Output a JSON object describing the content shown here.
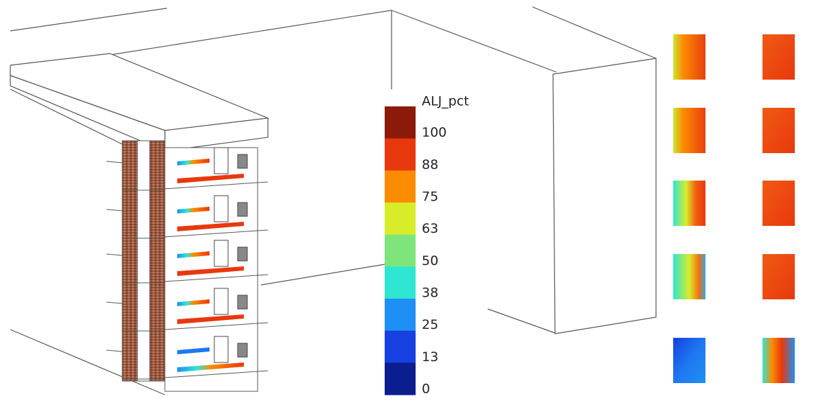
{
  "legend": {
    "title": "ALJ_pct",
    "labels": [
      100,
      88,
      75,
      63,
      50,
      38,
      25,
      13,
      0
    ],
    "colors": [
      "#8b1a0a",
      "#e8380d",
      "#fb8c00",
      "#d8ec2a",
      "#7ee57a",
      "#2fe6d2",
      "#1e90f5",
      "#1640e0",
      "#0b1e90"
    ]
  }
}
